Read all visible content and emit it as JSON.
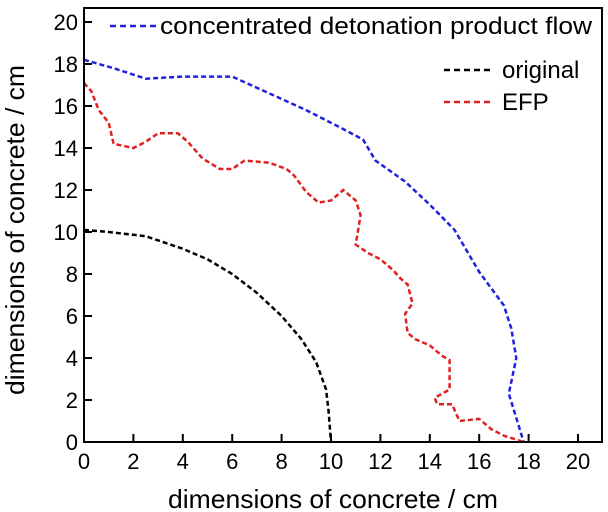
{
  "chart_data": {
    "type": "line",
    "xlabel": "dimensions of concrete / cm",
    "ylabel": "dimensions of concrete / cm",
    "xlim": [
      0,
      21
    ],
    "ylim": [
      0,
      21
    ],
    "xticks": [
      "0",
      "2",
      "4",
      "6",
      "8",
      "10",
      "12",
      "14",
      "16",
      "18",
      "20"
    ],
    "yticks": [
      "0",
      "2",
      "4",
      "6",
      "8",
      "10",
      "12",
      "14",
      "16",
      "18",
      "20"
    ],
    "grid": false,
    "legend_placement": "top-right",
    "series": [
      {
        "name": "concentrated detonation product flow",
        "color": "#2020e0",
        "style": "dashed",
        "x": [
          0,
          1.2,
          2.5,
          4,
          6,
          7.5,
          9,
          10.5,
          11.3,
          11.8,
          13,
          14,
          15,
          16,
          17,
          17.3,
          17.5,
          17.2,
          17.8
        ],
        "y": [
          18.2,
          17.8,
          17.3,
          17.4,
          17.4,
          16.6,
          15.8,
          14.9,
          14.4,
          13.4,
          12.4,
          11.3,
          10.1,
          8.1,
          6.5,
          5.4,
          4.0,
          2.3,
          0
        ]
      },
      {
        "name": "original",
        "color": "#000000",
        "style": "dashed",
        "x": [
          0,
          1,
          2.5,
          4,
          5,
          6,
          7,
          8,
          8.8,
          9.4,
          9.8,
          9.9,
          10
        ],
        "y": [
          10.1,
          10,
          9.8,
          9.2,
          8.7,
          8.0,
          7.1,
          6.0,
          4.9,
          3.8,
          2.5,
          1.5,
          0
        ]
      },
      {
        "name": "EFP",
        "color": "#e02020",
        "style": "dashed",
        "x": [
          0,
          0.3,
          0.6,
          1,
          1.2,
          2,
          2.5,
          3,
          3.8,
          4.2,
          4.8,
          5.5,
          6,
          6.5,
          7.5,
          8.2,
          8.5,
          9,
          9.5,
          10,
          10.5,
          11,
          11.2,
          11,
          11.5,
          12,
          12.5,
          12.8,
          13.1,
          13.3,
          13,
          13.1,
          13.4,
          14,
          14.5,
          14.8,
          14.8,
          14.2,
          14.3,
          14.9,
          15.2,
          16,
          16.5,
          17,
          17.8
        ],
        "y": [
          17.1,
          16.7,
          15.8,
          15.2,
          14.2,
          14.0,
          14.3,
          14.7,
          14.7,
          14.3,
          13.5,
          13.0,
          13.0,
          13.4,
          13.3,
          13.0,
          12.7,
          11.9,
          11.4,
          11.5,
          12.0,
          11.5,
          10.8,
          9.4,
          9.0,
          8.7,
          8.2,
          7.8,
          7.5,
          6.6,
          6.1,
          5.2,
          4.9,
          4.6,
          4.1,
          3.9,
          2.5,
          2.1,
          1.8,
          1.8,
          1.0,
          1.1,
          0.6,
          0.3,
          0
        ]
      }
    ]
  }
}
